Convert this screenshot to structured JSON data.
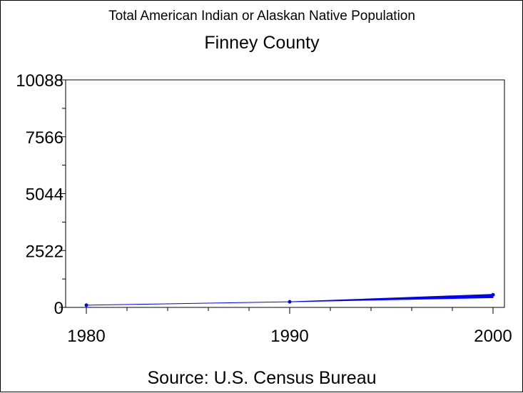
{
  "chart_data": {
    "type": "line",
    "title": "Total American Indian or Alaskan Native Population",
    "subtitle": "Finney County",
    "footnote": "Source: U.S. Census Bureau",
    "xlabel": "",
    "ylabel": "",
    "xlim": [
      1980,
      2000
    ],
    "ylim": [
      0,
      10088
    ],
    "x_ticks": [
      1980,
      1990,
      2000
    ],
    "y_ticks": [
      0,
      2522,
      5044,
      7566,
      10088
    ],
    "x_tick_labels": [
      "1980",
      "1990",
      "2000"
    ],
    "y_tick_labels": [
      "0",
      "2522",
      "5044",
      "7566",
      "10088"
    ],
    "grid": false,
    "legend": "none",
    "series": [
      {
        "color": "#0000ff",
        "x": [
          1980,
          1990,
          2000
        ],
        "y": [
          100,
          250,
          560
        ],
        "y_band_2000": [
          430,
          580
        ]
      }
    ]
  }
}
